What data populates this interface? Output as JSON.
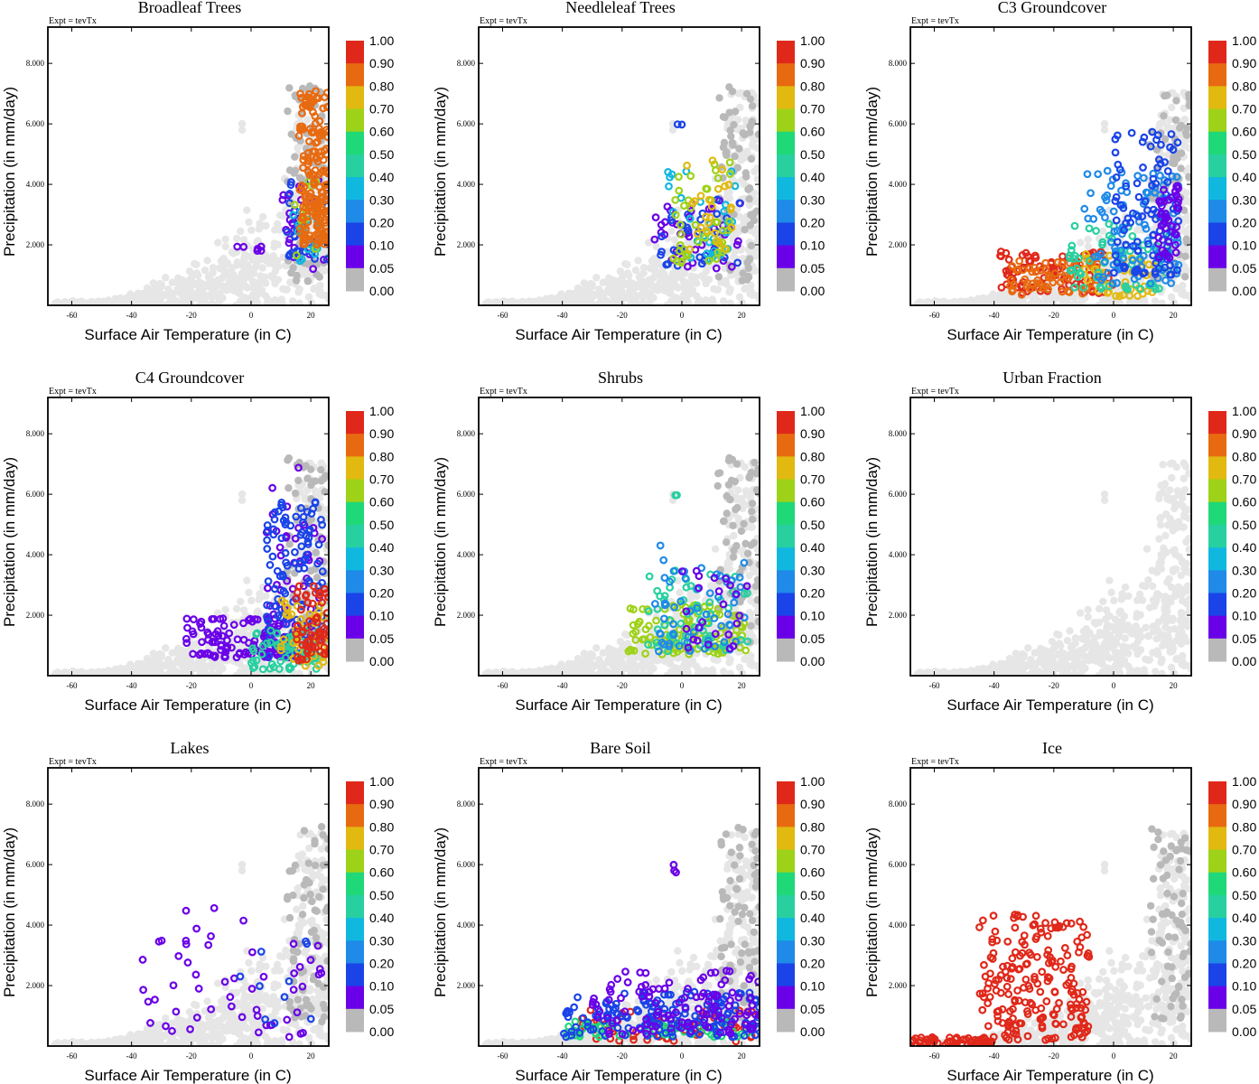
{
  "figure": {
    "expt_label": "Expt = tevTx",
    "xlabel": "Surface Air Temperature (in C)",
    "ylabel": "Precipitation (in mm/day)",
    "x_ticks": [
      -60,
      -40,
      -20,
      0,
      20
    ],
    "y_ticks": [
      "2.000",
      "4.000",
      "6.000",
      "8.000"
    ],
    "colorbar_labels": [
      "1.00",
      "0.90",
      "0.80",
      "0.70",
      "0.60",
      "0.50",
      "0.40",
      "0.30",
      "0.20",
      "0.10",
      "0.05",
      "0.00"
    ],
    "colors": {
      "background_points": "#e6e6e6",
      "bin_0.00": "#b9b9b9",
      "bin_0.05": "#6a00e8",
      "bin_0.10": "#1a44e8",
      "bin_0.20": "#1f8ae8",
      "bin_0.30": "#10b8e0",
      "bin_0.40": "#28d0a0",
      "bin_0.50": "#1fd878",
      "bin_0.60": "#9ed218",
      "bin_0.70": "#e2b910",
      "bin_0.80": "#e86a10",
      "bin_0.90": "#e0281a"
    }
  },
  "chart_data": [
    {
      "type": "scatter",
      "title": "Broadleaf Trees",
      "xlim": [
        -68,
        26
      ],
      "ylim": [
        0,
        9200
      ],
      "clusters": [
        {
          "x": [
            10,
            26
          ],
          "y": [
            1200,
            4500
          ],
          "bin": "0.05",
          "n": 28
        },
        {
          "x": [
            12,
            26
          ],
          "y": [
            1500,
            4200
          ],
          "bin": "0.10",
          "n": 30
        },
        {
          "x": [
            14,
            25
          ],
          "y": [
            1400,
            3600
          ],
          "bin": "0.30",
          "n": 18
        },
        {
          "x": [
            14,
            25
          ],
          "y": [
            1600,
            4200
          ],
          "bin": "0.60",
          "n": 12
        },
        {
          "x": [
            16,
            26
          ],
          "y": [
            2000,
            7100
          ],
          "bin": "0.80",
          "n": 180
        },
        {
          "x": [
            -5,
            5
          ],
          "y": [
            1800,
            2000
          ],
          "bin": "0.05",
          "n": 6
        }
      ]
    },
    {
      "type": "scatter",
      "title": "Needleleaf Trees",
      "xlim": [
        -68,
        26
      ],
      "ylim": [
        0,
        9200
      ],
      "clusters": [
        {
          "x": [
            -10,
            20
          ],
          "y": [
            1200,
            3500
          ],
          "bin": "0.05",
          "n": 40
        },
        {
          "x": [
            -8,
            20
          ],
          "y": [
            1300,
            3500
          ],
          "bin": "0.10",
          "n": 30
        },
        {
          "x": [
            -5,
            18
          ],
          "y": [
            1500,
            4500
          ],
          "bin": "0.30",
          "n": 30
        },
        {
          "x": [
            -3,
            18
          ],
          "y": [
            1400,
            4800
          ],
          "bin": "0.60",
          "n": 45
        },
        {
          "x": [
            0,
            18
          ],
          "y": [
            1800,
            5200
          ],
          "bin": "0.70",
          "n": 25
        },
        {
          "x": [
            -2,
            0
          ],
          "y": [
            5900,
            6000
          ],
          "bin": "0.10",
          "n": 2
        }
      ]
    },
    {
      "type": "scatter",
      "title": "C3 Groundcover",
      "xlim": [
        -68,
        26
      ],
      "ylim": [
        0,
        9200
      ],
      "clusters": [
        {
          "x": [
            -38,
            0
          ],
          "y": [
            400,
            1800
          ],
          "bin": "0.90",
          "n": 90
        },
        {
          "x": [
            -35,
            -5
          ],
          "y": [
            350,
            1500
          ],
          "bin": "0.80",
          "n": 60
        },
        {
          "x": [
            -10,
            15
          ],
          "y": [
            300,
            1700
          ],
          "bin": "0.70",
          "n": 40
        },
        {
          "x": [
            -15,
            20
          ],
          "y": [
            500,
            2700
          ],
          "bin": "0.40",
          "n": 60
        },
        {
          "x": [
            -10,
            22
          ],
          "y": [
            700,
            4500
          ],
          "bin": "0.20",
          "n": 100
        },
        {
          "x": [
            0,
            22
          ],
          "y": [
            1000,
            5800
          ],
          "bin": "0.10",
          "n": 100
        },
        {
          "x": [
            15,
            22
          ],
          "y": [
            1500,
            4000
          ],
          "bin": "0.05",
          "n": 40
        }
      ]
    },
    {
      "type": "scatter",
      "title": "C4 Groundcover",
      "xlim": [
        -68,
        26
      ],
      "ylim": [
        0,
        9200
      ],
      "clusters": [
        {
          "x": [
            -22,
            15
          ],
          "y": [
            600,
            1900
          ],
          "bin": "0.05",
          "n": 110
        },
        {
          "x": [
            5,
            24
          ],
          "y": [
            1000,
            7100
          ],
          "bin": "0.05",
          "n": 60
        },
        {
          "x": [
            5,
            24
          ],
          "y": [
            600,
            5800
          ],
          "bin": "0.10",
          "n": 120
        },
        {
          "x": [
            0,
            24
          ],
          "y": [
            200,
            1500
          ],
          "bin": "0.40",
          "n": 60
        },
        {
          "x": [
            10,
            26
          ],
          "y": [
            300,
            2500
          ],
          "bin": "0.70",
          "n": 40
        },
        {
          "x": [
            15,
            26
          ],
          "y": [
            500,
            3000
          ],
          "bin": "0.90",
          "n": 60
        }
      ]
    },
    {
      "type": "scatter",
      "title": "Shrubs",
      "xlim": [
        -68,
        26
      ],
      "ylim": [
        0,
        9200
      ],
      "clusters": [
        {
          "x": [
            -18,
            22
          ],
          "y": [
            700,
            2400
          ],
          "bin": "0.60",
          "n": 110
        },
        {
          "x": [
            -12,
            22
          ],
          "y": [
            800,
            3500
          ],
          "bin": "0.40",
          "n": 60
        },
        {
          "x": [
            -10,
            22
          ],
          "y": [
            800,
            4400
          ],
          "bin": "0.20",
          "n": 60
        },
        {
          "x": [
            0,
            22
          ],
          "y": [
            900,
            3500
          ],
          "bin": "0.05",
          "n": 25
        },
        {
          "x": [
            -3,
            -1
          ],
          "y": [
            5900,
            6000
          ],
          "bin": "0.40",
          "n": 2
        }
      ]
    },
    {
      "type": "scatter",
      "title": "Urban Fraction",
      "xlim": [
        -68,
        26
      ],
      "ylim": [
        0,
        9200
      ],
      "clusters": []
    },
    {
      "type": "scatter",
      "title": "Lakes",
      "xlim": [
        -68,
        26
      ],
      "ylim": [
        0,
        9200
      ],
      "clusters": [
        {
          "x": [
            -38,
            24
          ],
          "y": [
            300,
            4600
          ],
          "bin": "0.05",
          "n": 55
        },
        {
          "x": [
            -5,
            22
          ],
          "y": [
            500,
            3500
          ],
          "bin": "0.10",
          "n": 10
        }
      ]
    },
    {
      "type": "scatter",
      "title": "Bare Soil",
      "xlim": [
        -68,
        26
      ],
      "ylim": [
        0,
        9200
      ],
      "clusters": [
        {
          "x": [
            -42,
            26
          ],
          "y": [
            150,
            1200
          ],
          "bin": "0.90",
          "n": 60
        },
        {
          "x": [
            -40,
            26
          ],
          "y": [
            300,
            900
          ],
          "bin": "0.50",
          "n": 60
        },
        {
          "x": [
            -40,
            26
          ],
          "y": [
            300,
            1800
          ],
          "bin": "0.10",
          "n": 160
        },
        {
          "x": [
            -30,
            26
          ],
          "y": [
            400,
            2500
          ],
          "bin": "0.05",
          "n": 110
        },
        {
          "x": [
            -3,
            -1
          ],
          "y": [
            5700,
            6000
          ],
          "bin": "0.05",
          "n": 3
        }
      ]
    },
    {
      "type": "scatter",
      "title": "Ice",
      "xlim": [
        -68,
        26
      ],
      "ylim": [
        0,
        9200
      ],
      "clusters": [
        {
          "x": [
            -68,
            -40
          ],
          "y": [
            0,
            300
          ],
          "bin": "0.90",
          "n": 60
        },
        {
          "x": [
            -45,
            -8
          ],
          "y": [
            200,
            4400
          ],
          "bin": "0.90",
          "n": 200
        }
      ]
    }
  ]
}
